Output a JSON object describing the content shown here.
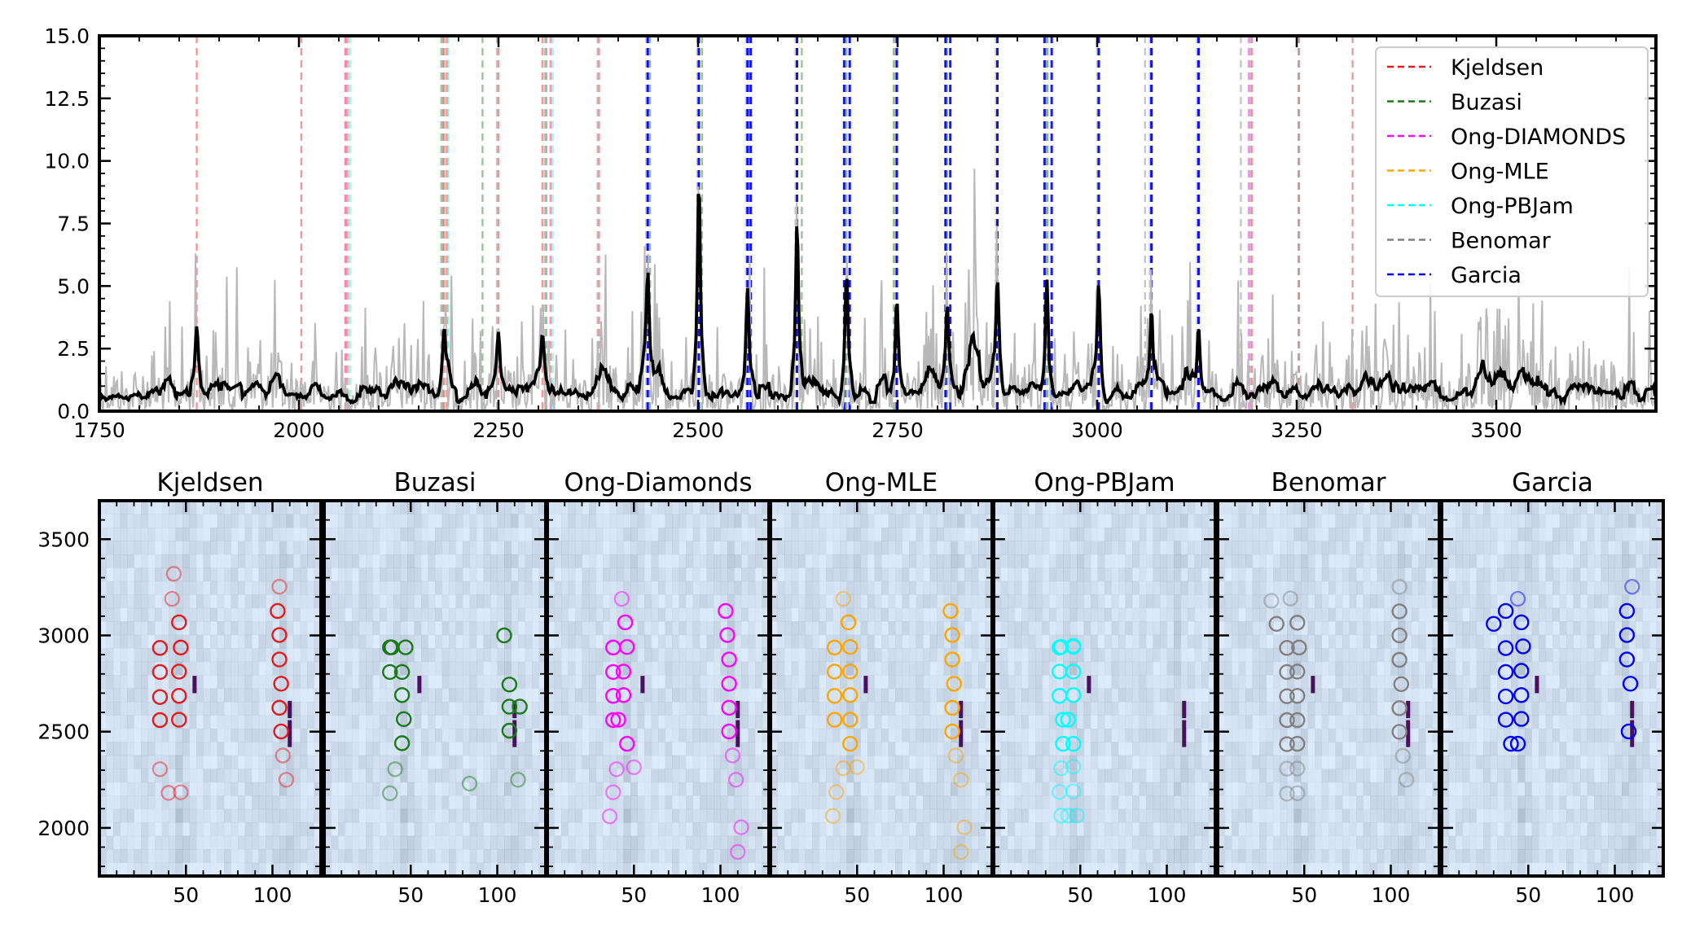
{
  "chart_data": [
    {
      "type": "line",
      "xlim": [
        1750,
        3700
      ],
      "ylim": [
        0,
        15
      ],
      "xticks": [
        "1750",
        "2000",
        "2250",
        "2500",
        "2750",
        "3000",
        "3250",
        "3500"
      ],
      "yticks": [
        "0.0",
        "2.5",
        "5.0",
        "7.5",
        "10.0",
        "12.5",
        "15.0"
      ],
      "legend_position": "top-right",
      "legend": [
        {
          "name": "Kjeldsen",
          "color": "#e41a1c"
        },
        {
          "name": "Buzasi",
          "color": "#1a7a1a"
        },
        {
          "name": "Ong-DIAMONDS",
          "color": "#ff00ff"
        },
        {
          "name": "Ong-MLE",
          "color": "#ffa500"
        },
        {
          "name": "Ong-PBJam",
          "color": "#00ffff"
        },
        {
          "name": "Benomar",
          "color": "#808080"
        },
        {
          "name": "Garcia",
          "color": "#0000ff"
        }
      ],
      "series": [
        {
          "style": "raw power spectrum",
          "color": "#b8b8b8"
        },
        {
          "style": "smoothed power spectrum",
          "color": "#000000"
        }
      ],
      "peaks": [
        {
          "x": 1872,
          "y": 2.5
        },
        {
          "x": 2182,
          "y": 2.4
        },
        {
          "x": 2250,
          "y": 2.5
        },
        {
          "x": 2305,
          "y": 2.0
        },
        {
          "x": 2437,
          "y": 4.1
        },
        {
          "x": 2501,
          "y": 8.5
        },
        {
          "x": 2562,
          "y": 3.7
        },
        {
          "x": 2624,
          "y": 6.8
        },
        {
          "x": 2686,
          "y": 4.6
        },
        {
          "x": 2749,
          "y": 3.6
        },
        {
          "x": 2812,
          "y": 3.3
        },
        {
          "x": 2875,
          "y": 4.1
        },
        {
          "x": 2937,
          "y": 4.6
        },
        {
          "x": 3002,
          "y": 4.0
        },
        {
          "x": 3068,
          "y": 3.0
        },
        {
          "x": 3127,
          "y": 2.6
        }
      ],
      "mode_lines": {
        "Kjeldsen": [
          1872,
          2003,
          2058,
          2182,
          2250,
          2305,
          2376,
          2437,
          2501,
          2562,
          2624,
          2686,
          2749,
          2812,
          2875,
          2937,
          3002,
          3068,
          3127,
          3194,
          3253,
          3320
        ],
        "Buzasi": [
          2180,
          2230,
          2310,
          2440,
          2505,
          2565,
          2630,
          2690,
          2745,
          2810,
          2938
        ],
        "Ong-DIAMONDS": [
          2060,
          2185,
          2315,
          2437,
          2501,
          2562,
          2624,
          2686,
          2749,
          2812,
          2875,
          2937,
          3002,
          3068,
          3127,
          3190
        ],
        "Ong-MLE": [
          2062,
          2186,
          2316,
          2437,
          2501,
          2562,
          2624,
          2686,
          2749,
          2812,
          2875,
          2937,
          3002,
          3068,
          3127
        ],
        "Ong-PBJam": [
          2064,
          2187,
          2318,
          2437,
          2501,
          2562,
          2624,
          2686,
          2749,
          2812,
          2875,
          2937,
          3002,
          3068,
          3127
        ],
        "Benomar": [
          2178,
          2248,
          2308,
          2374,
          2435,
          2499,
          2560,
          2622,
          2684,
          2747,
          2810,
          2873,
          2935,
          3000,
          3060,
          3066,
          3125,
          3180,
          3192,
          3252
        ],
        "Garcia": [
          2437,
          2501,
          2562,
          2566,
          2624,
          2683,
          2690,
          2749,
          2810,
          2816,
          2875,
          2934,
          2943,
          3002,
          3068,
          3127
        ]
      }
    },
    {
      "type": "scatter",
      "panels": [
        {
          "title": "Kjeldsen",
          "color": "#e41a1c",
          "points": [
            [
              35,
              2305
            ],
            [
              40,
              2182
            ],
            [
              47,
              2185
            ],
            [
              35,
              2560
            ],
            [
              46,
              2562
            ],
            [
              35,
              2680
            ],
            [
              46,
              2686
            ],
            [
              35,
              2810
            ],
            [
              46,
              2812
            ],
            [
              35,
              2935
            ],
            [
              47,
              2937
            ],
            [
              46,
              3068
            ],
            [
              42,
              3190
            ],
            [
              43,
              3320
            ],
            [
              108,
              2250
            ],
            [
              106,
              2376
            ],
            [
              105,
              2501
            ],
            [
              104,
              2624
            ],
            [
              105,
              2749
            ],
            [
              104,
              2875
            ],
            [
              104,
              3002
            ],
            [
              103,
              3127
            ],
            [
              104,
              3253
            ]
          ]
        },
        {
          "title": "Buzasi",
          "color": "#1a7a1a",
          "points": [
            [
              38,
              2180
            ],
            [
              41,
              2305
            ],
            [
              45,
              2440
            ],
            [
              46,
              2565
            ],
            [
              45,
              2690
            ],
            [
              38,
              2810
            ],
            [
              45,
              2810
            ],
            [
              38,
              2938
            ],
            [
              39,
              2938
            ],
            [
              47,
              2938
            ],
            [
              84,
              2230
            ],
            [
              112,
              2250
            ],
            [
              113,
              2630
            ],
            [
              107,
              2505
            ],
            [
              107,
              2630
            ],
            [
              107,
              2745
            ],
            [
              104,
              3000
            ]
          ]
        },
        {
          "title": "Ong-Diamonds",
          "color": "#ff00ff",
          "points": [
            [
              36,
              2060
            ],
            [
              38,
              2185
            ],
            [
              40,
              2305
            ],
            [
              50,
              2315
            ],
            [
              46,
              2437
            ],
            [
              38,
              2560
            ],
            [
              41,
              2562
            ],
            [
              38,
              2686
            ],
            [
              44,
              2690
            ],
            [
              38,
              2810
            ],
            [
              44,
              2812
            ],
            [
              38,
              2937
            ],
            [
              46,
              2940
            ],
            [
              45,
              3068
            ],
            [
              43,
              3190
            ],
            [
              110,
              1875
            ],
            [
              112,
              2003
            ],
            [
              109,
              2250
            ],
            [
              107,
              2376
            ],
            [
              105,
              2501
            ],
            [
              105,
              2624
            ],
            [
              105,
              2749
            ],
            [
              105,
              2875
            ],
            [
              104,
              3002
            ],
            [
              103,
              3127
            ]
          ]
        },
        {
          "title": "Ong-MLE",
          "color": "#ffa500",
          "points": [
            [
              36,
              2062
            ],
            [
              38,
              2186
            ],
            [
              42,
              2310
            ],
            [
              50,
              2316
            ],
            [
              46,
              2437
            ],
            [
              37,
              2562
            ],
            [
              46,
              2562
            ],
            [
              37,
              2686
            ],
            [
              46,
              2690
            ],
            [
              37,
              2812
            ],
            [
              46,
              2812
            ],
            [
              37,
              2937
            ],
            [
              46,
              2940
            ],
            [
              45,
              3068
            ],
            [
              42,
              3190
            ],
            [
              110,
              1875
            ],
            [
              112,
              2003
            ],
            [
              110,
              2250
            ],
            [
              107,
              2376
            ],
            [
              105,
              2501
            ],
            [
              105,
              2624
            ],
            [
              106,
              2749
            ],
            [
              105,
              2875
            ],
            [
              105,
              3002
            ],
            [
              104,
              3127
            ]
          ]
        },
        {
          "title": "Ong-PBJam",
          "color": "#00ffff",
          "points": [
            [
              39,
              2064
            ],
            [
              43,
              2064
            ],
            [
              48,
              2064
            ],
            [
              38,
              2187
            ],
            [
              46,
              2190
            ],
            [
              39,
              2310
            ],
            [
              46,
              2318
            ],
            [
              40,
              2437
            ],
            [
              46,
              2437
            ],
            [
              40,
              2562
            ],
            [
              43,
              2562
            ],
            [
              38,
              2686
            ],
            [
              46,
              2690
            ],
            [
              38,
              2812
            ],
            [
              46,
              2812
            ],
            [
              38,
              2937
            ],
            [
              46,
              2940
            ],
            [
              39,
              2940
            ],
            [
              46,
              2945
            ]
          ]
        },
        {
          "title": "Benomar",
          "color": "#808080",
          "points": [
            [
              40,
              2178
            ],
            [
              46,
              2180
            ],
            [
              40,
              2308
            ],
            [
              46,
              2308
            ],
            [
              40,
              2435
            ],
            [
              46,
              2437
            ],
            [
              40,
              2560
            ],
            [
              46,
              2560
            ],
            [
              40,
              2684
            ],
            [
              46,
              2686
            ],
            [
              40,
              2810
            ],
            [
              46,
              2812
            ],
            [
              40,
              2935
            ],
            [
              47,
              2937
            ],
            [
              46,
              3066
            ],
            [
              34,
              3060
            ],
            [
              31,
              3180
            ],
            [
              42,
              3192
            ],
            [
              109,
              2250
            ],
            [
              107,
              2374
            ],
            [
              105,
              2499
            ],
            [
              105,
              2622
            ],
            [
              106,
              2747
            ],
            [
              105,
              2873
            ],
            [
              105,
              3000
            ],
            [
              105,
              3125
            ],
            [
              105,
              3252
            ]
          ]
        },
        {
          "title": "Garcia",
          "color": "#0000ff",
          "points": [
            [
              44,
              2437
            ],
            [
              37,
              2562
            ],
            [
              46,
              2566
            ],
            [
              37,
              2683
            ],
            [
              46,
              2690
            ],
            [
              37,
              2810
            ],
            [
              46,
              2816
            ],
            [
              37,
              2934
            ],
            [
              47,
              2943
            ],
            [
              46,
              3068
            ],
            [
              44,
              3190
            ],
            [
              37,
              3127
            ],
            [
              30,
              3060
            ],
            [
              40,
              2437
            ],
            [
              108,
              2501
            ],
            [
              109,
              2749
            ],
            [
              107,
              2875
            ],
            [
              107,
              3002
            ],
            [
              107,
              3127
            ],
            [
              110,
              3253
            ]
          ]
        }
      ],
      "xlim": [
        0,
        128
      ],
      "ylim": [
        1750,
        3700
      ],
      "xticks": [
        "50",
        "100"
      ],
      "yticks": [
        "2000",
        "2500",
        "3000",
        "3500"
      ]
    }
  ]
}
